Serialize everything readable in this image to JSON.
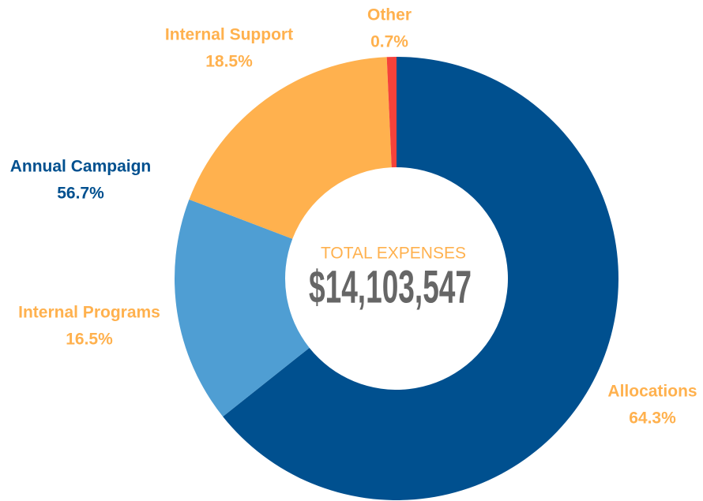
{
  "chart_data": {
    "type": "donut",
    "categories": [
      "Allocations",
      "Internal Programs",
      "Internal Support",
      "Other"
    ],
    "values": [
      64.3,
      16.5,
      18.5,
      0.7
    ],
    "value_labels": [
      "64.3%",
      "16.5%",
      "18.5%",
      "0.7%"
    ],
    "colors": [
      "#00508f",
      "#4f9ed3",
      "#ffb14e",
      "#f5423a"
    ],
    "label_color": "#ffb14e",
    "center_label": "TOTAL EXPENSES",
    "center_value": "$14,103,547",
    "annotations": [
      {
        "text": "Annual Campaign",
        "value_label": "56.7%",
        "color": "#00508f"
      }
    ]
  }
}
